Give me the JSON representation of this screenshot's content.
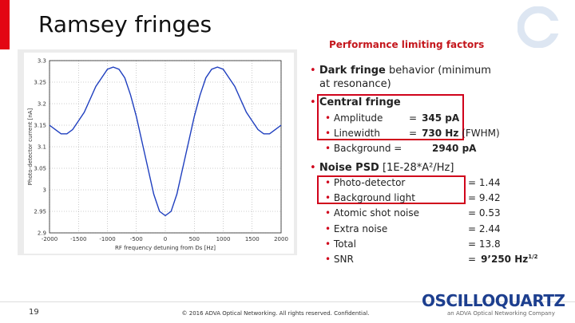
{
  "title": "Ramsey fringes",
  "section_title": "Performance limiting factors",
  "bullets": [
    {
      "bold": "Dark fringe",
      "text": "behavior (minimum at resonance)"
    },
    {
      "bold": "Central fringe",
      "items": [
        {
          "label": "Amplitude",
          "eq": "=",
          "bold": "345 pA"
        },
        {
          "label": "Linewidth",
          "eq": "=",
          "bold": "730 Hz",
          "note": "(FWHM)"
        },
        {
          "label": "Background =",
          "bold": "2940 pA"
        }
      ]
    },
    {
      "bold": "Noise PSD",
      "text": "[1E-28*A²/Hz]",
      "items": [
        {
          "label": "Photo-detector",
          "eq": "= 1.44"
        },
        {
          "label": "Background light",
          "eq": "= 9.42"
        },
        {
          "label": "Atomic shot noise",
          "eq": "= 0.53"
        },
        {
          "label": "Extra noise",
          "eq": "= 2.44"
        },
        {
          "label": "Total",
          "eq": "= 13.8"
        },
        {
          "label": "SNR",
          "eq": "=",
          "bold": "9’250 Hz",
          "sup": "1/2"
        }
      ]
    }
  ],
  "chart_data": {
    "type": "line",
    "x_label": "RF frequency detuning from Ds [Hz]",
    "y_label": "Photo-detector current [nA]",
    "x": [
      -2000,
      -1900,
      -1800,
      -1700,
      -1600,
      -1500,
      -1400,
      -1300,
      -1200,
      -1100,
      -1000,
      -900,
      -800,
      -700,
      -600,
      -500,
      -400,
      -300,
      -200,
      -100,
      0,
      100,
      200,
      300,
      400,
      500,
      600,
      700,
      800,
      900,
      1000,
      1100,
      1200,
      1300,
      1400,
      1500,
      1600,
      1700,
      1800,
      1900,
      2000
    ],
    "values": [
      3.15,
      3.14,
      3.13,
      3.13,
      3.14,
      3.16,
      3.18,
      3.21,
      3.24,
      3.26,
      3.28,
      3.285,
      3.28,
      3.26,
      3.22,
      3.17,
      3.11,
      3.05,
      2.99,
      2.95,
      2.94,
      2.95,
      2.99,
      3.05,
      3.11,
      3.17,
      3.22,
      3.26,
      3.28,
      3.285,
      3.28,
      3.26,
      3.24,
      3.21,
      3.18,
      3.16,
      3.14,
      3.13,
      3.13,
      3.14,
      3.15
    ],
    "color": "#1f3fbf",
    "xlim": [
      -2000,
      2000
    ],
    "xticks": [
      -2000,
      -1500,
      -1000,
      -500,
      0,
      500,
      1000,
      1500,
      2000
    ],
    "ylim": [
      2.9,
      3.3
    ],
    "yticks": [
      2.9,
      2.95,
      3,
      3.05,
      3.1,
      3.15,
      3.2,
      3.25,
      3.3
    ],
    "grid": true
  },
  "footer": {
    "page": "19",
    "copyright": "© 2016 ADVA Optical Networking. All rights reserved. Confidential.",
    "logo": "OSCILLOQUARTZ",
    "logo_tagline": "an ADVA Optical Networking Company"
  }
}
